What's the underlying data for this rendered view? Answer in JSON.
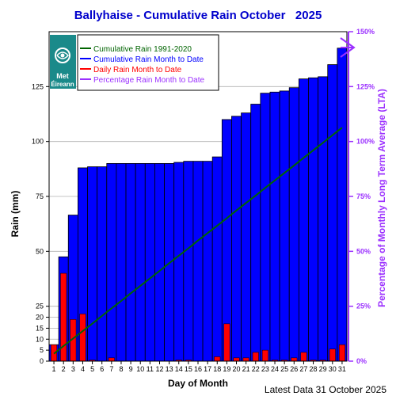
{
  "chart_data": {
    "type": "bar",
    "title": "Ballyhaise - Cumulative Rain October   2025",
    "xlabel": "Day of Month",
    "ylabel": "Rain (mm)",
    "y2label": "Percentage  of Monthly Long Term Average (LTA)",
    "footer": "Latest Data 31 October 2025",
    "x": [
      1,
      2,
      3,
      4,
      5,
      6,
      7,
      8,
      9,
      10,
      11,
      12,
      13,
      14,
      15,
      16,
      17,
      18,
      19,
      20,
      21,
      22,
      23,
      24,
      25,
      26,
      27,
      28,
      29,
      30,
      31
    ],
    "y_ticks": [
      "0",
      "5",
      "10",
      "15",
      "20",
      "25",
      "50",
      "75",
      "100",
      "125"
    ],
    "y2_ticks": [
      "0%",
      "25%",
      "50%",
      "75%",
      "100%",
      "125%",
      "150%"
    ],
    "ylim": [
      0,
      150
    ],
    "y2lim": [
      0,
      150
    ],
    "legend": {
      "cumulative_lta": "Cumulative Rain 1991-2020",
      "cumulative_month": "Cumulative Rain Month to Date",
      "daily": "Daily Rain Month to Date",
      "percentage": "Percentage Rain Month to Date",
      "placement": "top-left"
    },
    "logo_text": [
      "Met",
      "Éireann"
    ],
    "colors": {
      "cumulative_month": "#0000ff",
      "daily": "#ff0000",
      "cumulative_lta": "#006400",
      "percentage": "#9b30ff",
      "title": "#0000cc"
    },
    "series": [
      {
        "name": "Cumulative Rain Month to Date",
        "values": [
          7.5,
          47.5,
          66.5,
          88,
          88.5,
          88.5,
          90,
          90,
          90,
          90,
          90,
          90,
          90,
          90.5,
          91,
          91,
          91,
          93,
          110,
          111.5,
          113,
          117,
          122,
          122.5,
          123,
          124.5,
          128.5,
          129,
          129.5,
          135,
          142.5
        ]
      },
      {
        "name": "Daily Rain Month to Date",
        "values": [
          7.5,
          40,
          19,
          21.5,
          0.5,
          0,
          1.5,
          0,
          0,
          0,
          0,
          0,
          0,
          0.5,
          0.5,
          0,
          0,
          2,
          17,
          1.5,
          1.5,
          4,
          5,
          0.5,
          0.5,
          1.5,
          4,
          0.5,
          0.5,
          5.5,
          7.5
        ]
      },
      {
        "name": "Cumulative Rain 1991-2020",
        "values": [
          3.4,
          6.9,
          10.3,
          13.7,
          17.1,
          20.6,
          24,
          27.4,
          30.9,
          34.3,
          37.7,
          41.1,
          44.6,
          48,
          51.4,
          54.9,
          58.3,
          61.7,
          65.1,
          68.6,
          72,
          75.4,
          78.9,
          82.3,
          85.7,
          89.1,
          92.6,
          96,
          99.4,
          102.9,
          106.3
        ]
      }
    ]
  }
}
